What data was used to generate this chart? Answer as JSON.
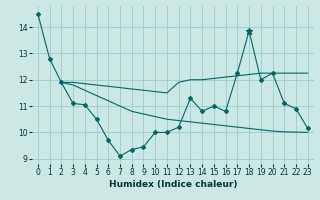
{
  "xlabel": "Humidex (Indice chaleur)",
  "bg_color": "#cce8e4",
  "grid_color": "#99cccc",
  "line_color": "#006666",
  "ylim": [
    8.8,
    14.8
  ],
  "xlim": [
    -0.5,
    23.5
  ],
  "yticks": [
    9,
    10,
    11,
    12,
    13,
    14
  ],
  "xticks": [
    0,
    1,
    2,
    3,
    4,
    5,
    6,
    7,
    8,
    9,
    10,
    11,
    12,
    13,
    14,
    15,
    16,
    17,
    18,
    19,
    20,
    21,
    22,
    23
  ],
  "s1_x": [
    0,
    1,
    2,
    3,
    4,
    5,
    6,
    7,
    8,
    9,
    10,
    11,
    12,
    13,
    14,
    15,
    16,
    17,
    18,
    19,
    20,
    21,
    22,
    23
  ],
  "s1_y": [
    14.5,
    12.8,
    11.9,
    11.1,
    11.05,
    10.5,
    9.7,
    9.1,
    9.35,
    9.45,
    10.0,
    10.0,
    10.2,
    11.3,
    10.8,
    11.0,
    10.8,
    12.25,
    13.85,
    12.0,
    12.25,
    11.1,
    10.9,
    10.15
  ],
  "s2_x": [
    2,
    3,
    4,
    5,
    6,
    7,
    8,
    9,
    10,
    11,
    12,
    13,
    14,
    15,
    16,
    17,
    18,
    19,
    20,
    21,
    22,
    23
  ],
  "s2_y": [
    11.9,
    11.9,
    11.85,
    11.8,
    11.75,
    11.7,
    11.65,
    11.6,
    11.55,
    11.5,
    11.9,
    12.0,
    12.0,
    12.05,
    12.1,
    12.15,
    12.2,
    12.25,
    12.25,
    12.25,
    12.25,
    12.25
  ],
  "s3_x": [
    2,
    3,
    4,
    5,
    6,
    7,
    8,
    9,
    10,
    11,
    12,
    13,
    14,
    15,
    16,
    17,
    18,
    19,
    20,
    21,
    22,
    23
  ],
  "s3_y": [
    11.9,
    11.8,
    11.6,
    11.4,
    11.2,
    11.0,
    10.8,
    10.7,
    10.6,
    10.5,
    10.45,
    10.4,
    10.35,
    10.3,
    10.25,
    10.2,
    10.15,
    10.1,
    10.05,
    10.02,
    10.01,
    10.0
  ]
}
